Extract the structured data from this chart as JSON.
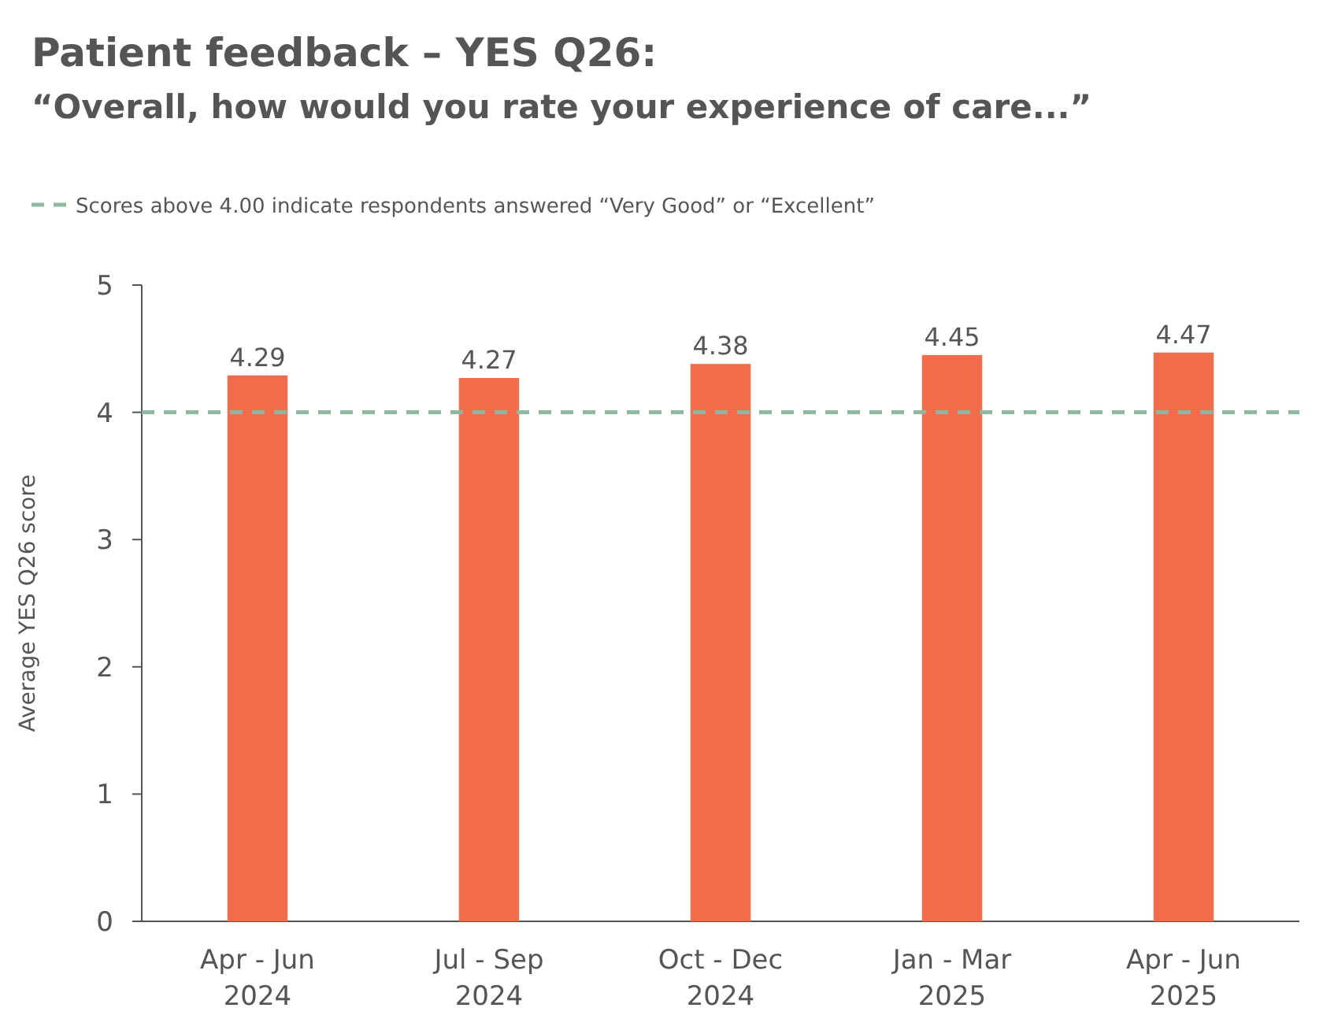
{
  "chart_data": {
    "type": "bar",
    "title": "Patient feedback – YES Q26:",
    "subtitle": "“Overall, how would you rate your experience of care...”",
    "ylabel": "Average YES Q26 score",
    "categories": [
      "Apr - Jun\n2024",
      "Jul - Sep\n2024",
      "Oct - Dec\n2024",
      "Jan - Mar\n2025",
      "Apr - Jun\n2025"
    ],
    "values": [
      4.29,
      4.27,
      4.38,
      4.45,
      4.47
    ],
    "color": "#f26b4b",
    "data_labels": true,
    "ylim": [
      0,
      5
    ],
    "yticks": [
      0,
      1,
      2,
      3,
      4,
      5
    ],
    "grid": false,
    "legend": "top left",
    "ref_lines": [
      {
        "axis": "y",
        "value": 4,
        "label": "Scores above 4.00 indicate respondents answered “Very Good” or “Excellent”",
        "color": "#8fb8a0",
        "line_style": "dashed"
      }
    ]
  }
}
